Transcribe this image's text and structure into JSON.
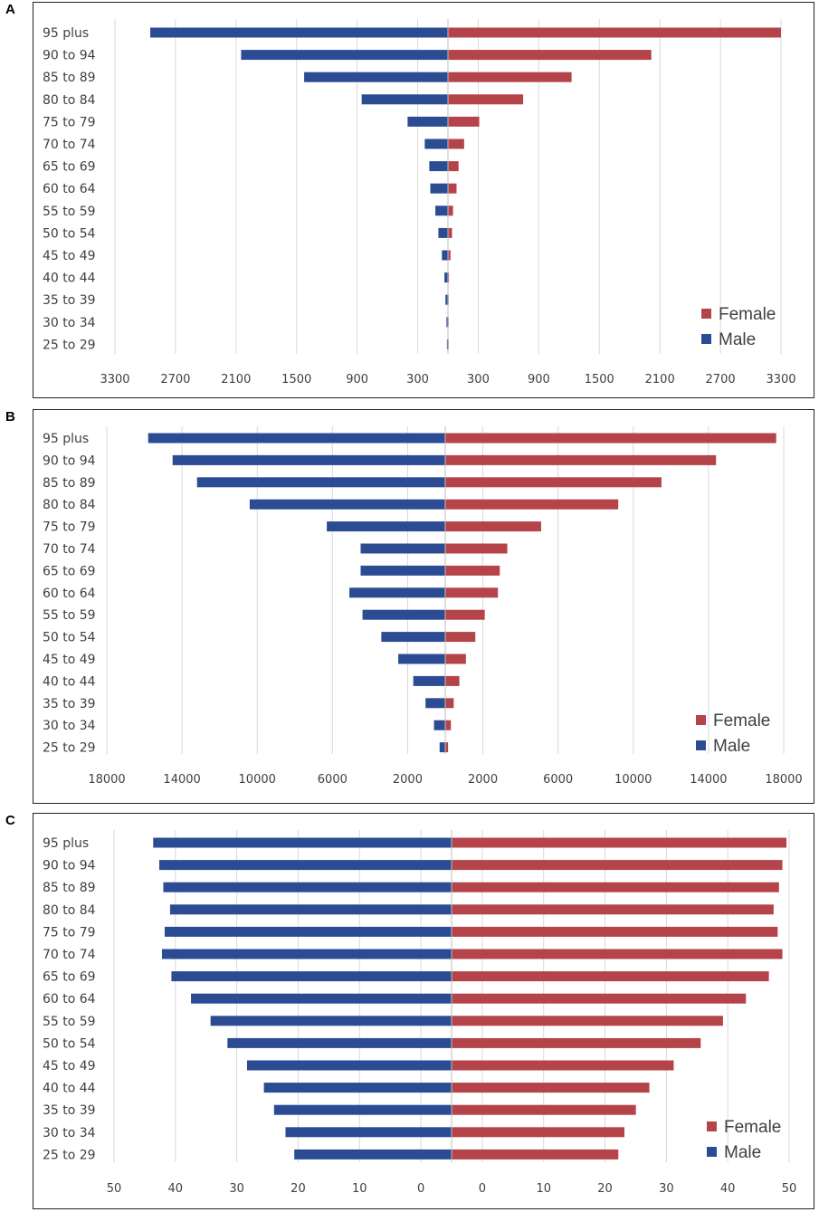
{
  "colors": {
    "female": "#b5434a",
    "male": "#2b4c93",
    "grid": "#d9d9d9"
  },
  "chart_data": [
    {
      "panel": "A",
      "type": "bar",
      "orientation": "horizontal-butterfly",
      "categories": [
        "95 plus",
        "90 to 94",
        "85 to 89",
        "80 to 84",
        "75 to 79",
        "70 to 74",
        "65 to 69",
        "60 to 64",
        "55 to 59",
        "50 to 54",
        "45 to 49",
        "40 to 44",
        "35 to 39",
        "30 to 34",
        "25 to 29"
      ],
      "series": [
        {
          "name": "Female",
          "values": [
            3300,
            2015,
            1225,
            745,
            310,
            160,
            105,
            85,
            50,
            40,
            25,
            10,
            5,
            3,
            2
          ]
        },
        {
          "name": "Male",
          "values": [
            2950,
            2050,
            1425,
            855,
            400,
            230,
            185,
            175,
            125,
            95,
            60,
            35,
            25,
            15,
            10
          ]
        }
      ],
      "axis_max": 3300,
      "tick_labels": [
        "3300",
        "2700",
        "2100",
        "1500",
        "900",
        "300",
        "300",
        "900",
        "1500",
        "2100",
        "2700",
        "3300"
      ],
      "legend": [
        "Female",
        "Male"
      ],
      "legend_position": "bottom-right"
    },
    {
      "panel": "B",
      "type": "bar",
      "orientation": "horizontal-butterfly",
      "categories": [
        "95 plus",
        "90 to 94",
        "85 to 89",
        "80 to 84",
        "75 to 79",
        "70 to 74",
        "65 to 69",
        "60 to 64",
        "55 to 59",
        "50 to 54",
        "45 to 49",
        "40 to 44",
        "35 to 39",
        "30 to 34",
        "25 to 29"
      ],
      "series": [
        {
          "name": "Female",
          "values": [
            17600,
            14400,
            11500,
            9200,
            5100,
            3300,
            2900,
            2800,
            2100,
            1600,
            1100,
            750,
            450,
            300,
            150
          ]
        },
        {
          "name": "Male",
          "values": [
            15800,
            14500,
            13200,
            10400,
            6300,
            4500,
            4500,
            5100,
            4400,
            3400,
            2500,
            1700,
            1050,
            600,
            300
          ]
        }
      ],
      "axis_max": 18000,
      "tick_labels": [
        "18000",
        "14000",
        "10000",
        "6000",
        "2000",
        "2000",
        "6000",
        "10000",
        "14000",
        "18000"
      ],
      "legend": [
        "Female",
        "Male"
      ],
      "legend_position": "bottom-right"
    },
    {
      "panel": "C",
      "type": "bar",
      "orientation": "horizontal-butterfly",
      "categories": [
        "95 plus",
        "90 to 94",
        "85 to 89",
        "80 to 84",
        "75 to 79",
        "70 to 74",
        "65 to 69",
        "60 to 64",
        "55 to 59",
        "50 to 54",
        "45 to 49",
        "40 to 44",
        "35 to 39",
        "30 to 34",
        "25 to 29"
      ],
      "series": [
        {
          "name": "Female",
          "values": [
            49.6,
            49,
            48.5,
            47.7,
            48.3,
            49,
            47,
            43.6,
            40.2,
            36.9,
            32.9,
            29.3,
            27.3,
            25.6,
            24.7
          ]
        },
        {
          "name": "Male",
          "values": [
            44.2,
            43.3,
            42.7,
            41.7,
            42.5,
            42.9,
            41.5,
            38.6,
            35.7,
            33.2,
            30.3,
            27.8,
            26.3,
            24.6,
            23.3
          ]
        }
      ],
      "axis_max": 50,
      "tick_labels": [
        "50",
        "40",
        "30",
        "20",
        "10",
        "0",
        "0",
        "10",
        "20",
        "30",
        "40",
        "50"
      ],
      "legend": [
        "Female",
        "Male"
      ],
      "legend_position": "bottom-right"
    }
  ]
}
